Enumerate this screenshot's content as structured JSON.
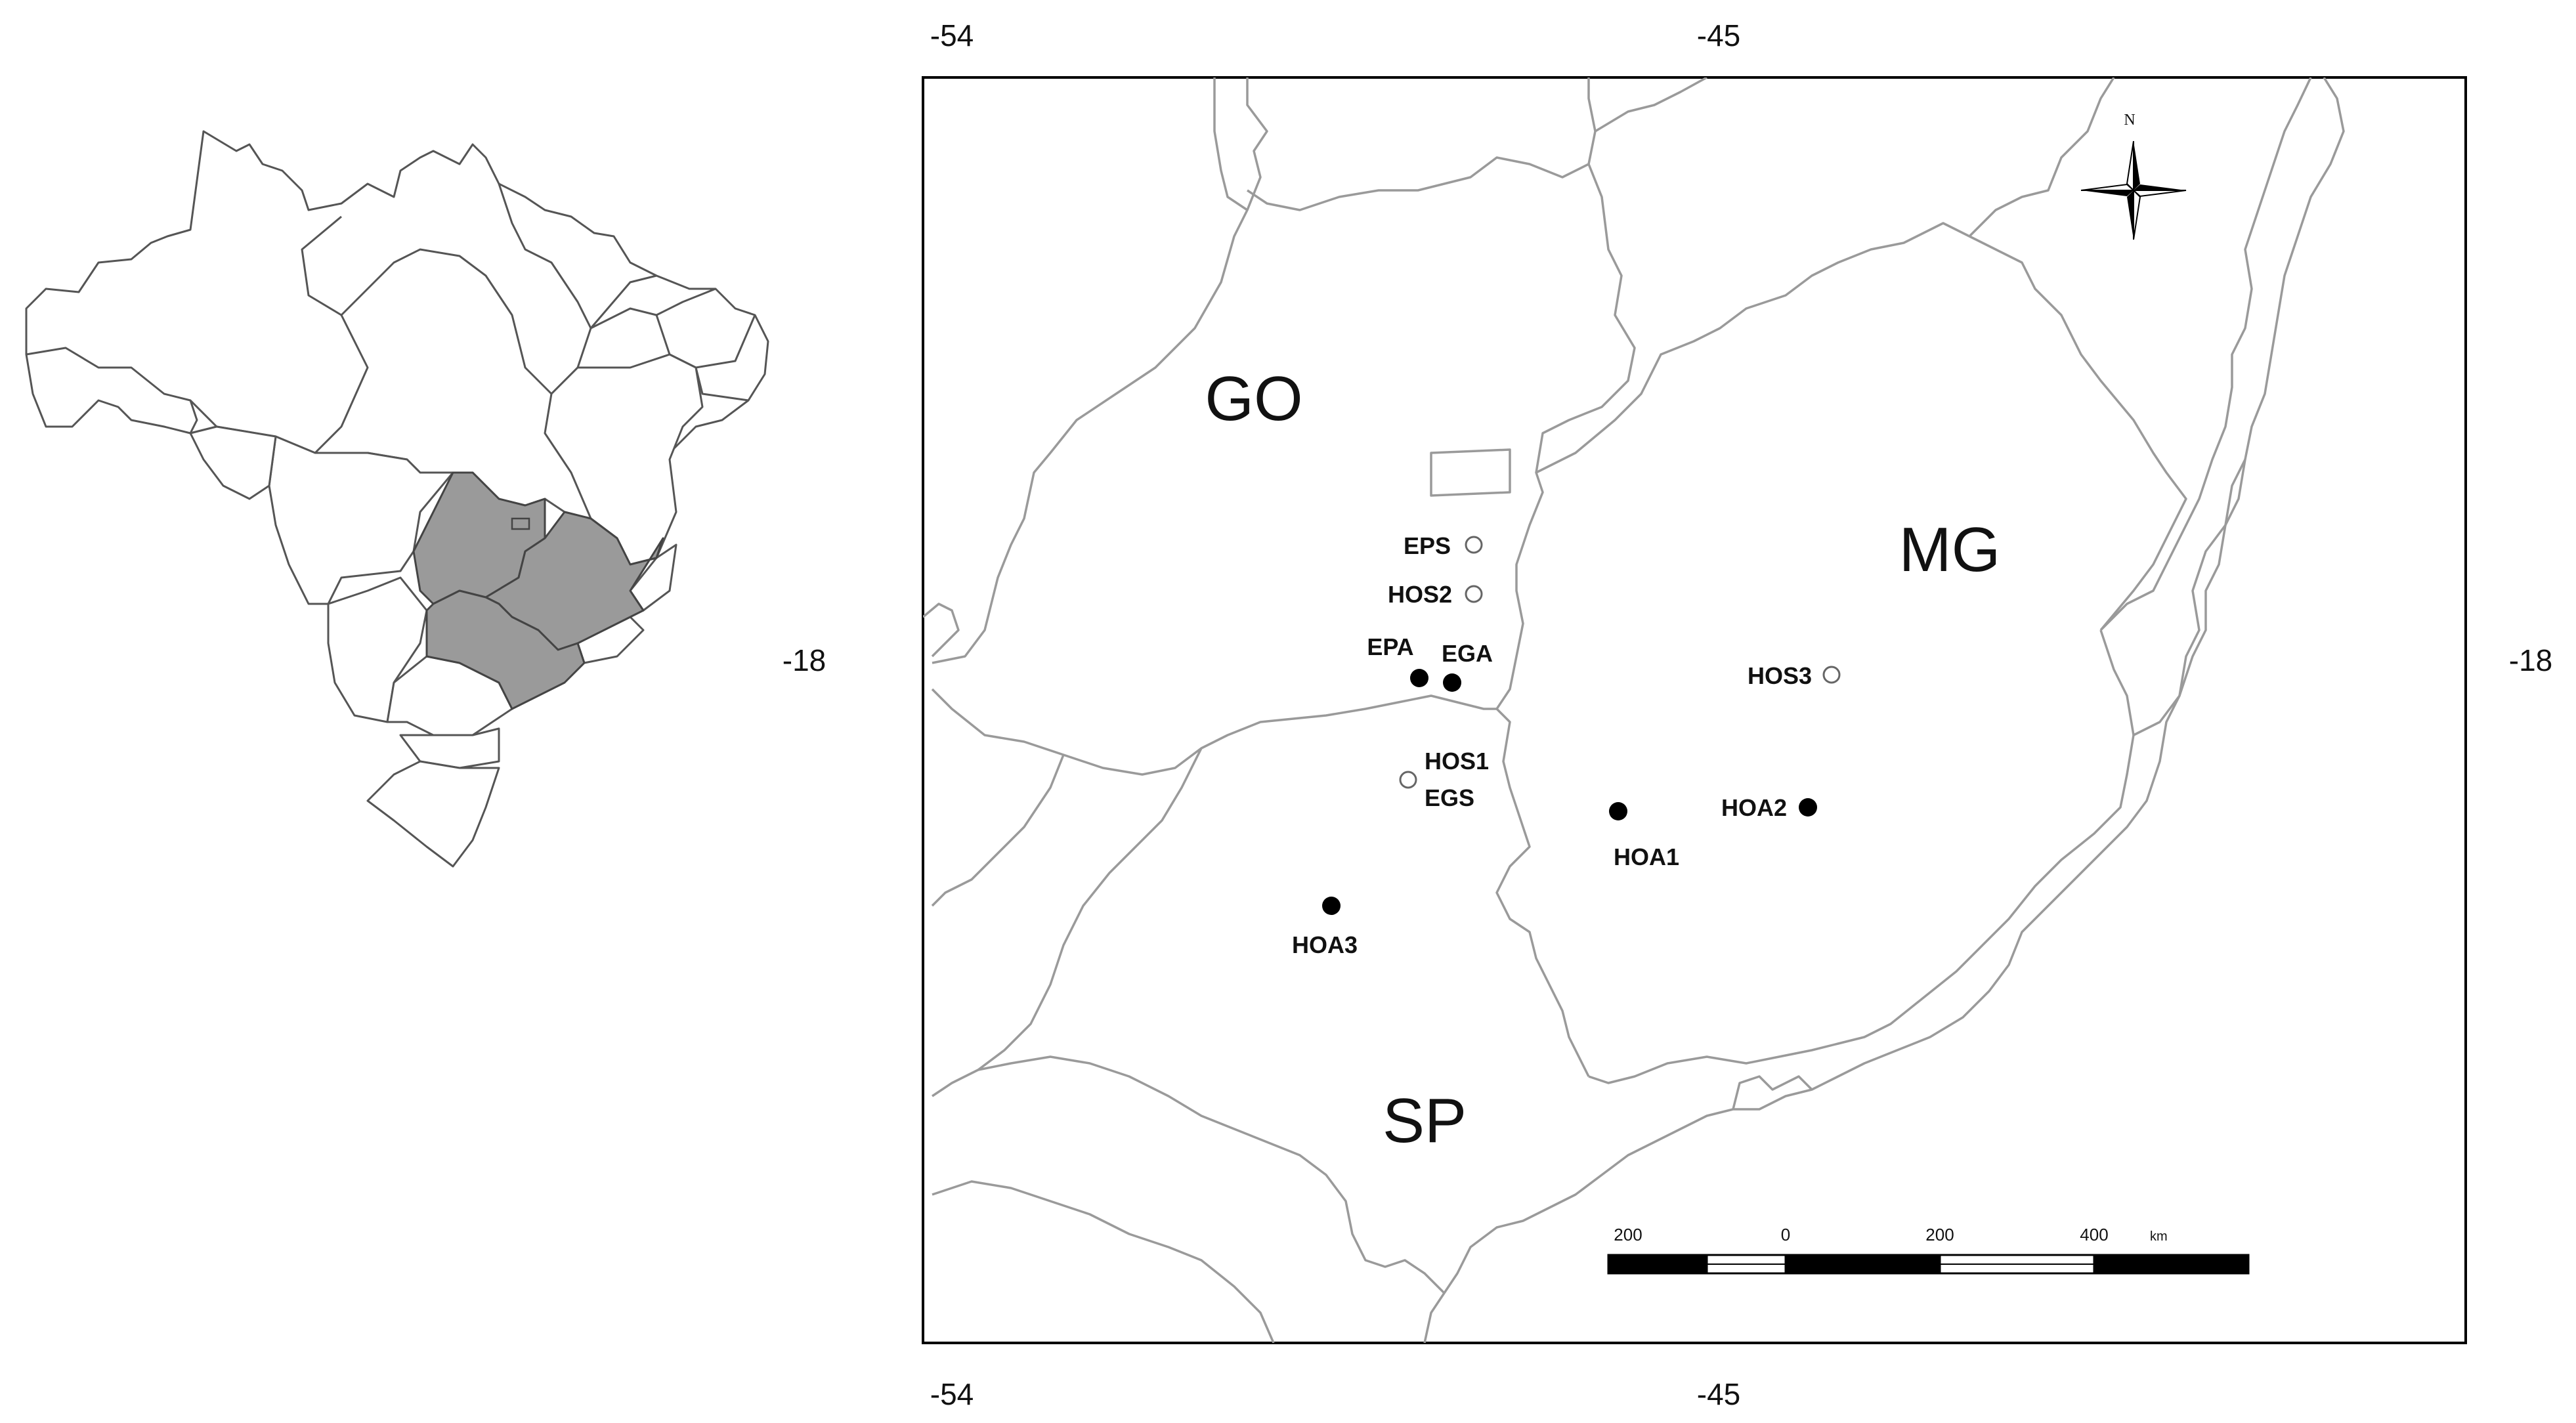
{
  "map": {
    "coords": {
      "top": [
        "-54",
        "-45"
      ],
      "bottom": [
        "-54",
        "-45"
      ],
      "left": "-18",
      "right": "-18"
    },
    "states": [
      "GO",
      "MG",
      "SP"
    ],
    "sites": [
      {
        "label": "EPS",
        "marker": "open"
      },
      {
        "label": "HOS2",
        "marker": "open"
      },
      {
        "label": "EPA",
        "marker": "filled"
      },
      {
        "label": "EGA",
        "marker": "filled"
      },
      {
        "label": "HOS3",
        "marker": "open"
      },
      {
        "label": "HOS1",
        "marker": "open"
      },
      {
        "label": "EGS",
        "marker": "open"
      },
      {
        "label": "HOA1",
        "marker": "filled"
      },
      {
        "label": "HOA2",
        "marker": "filled"
      },
      {
        "label": "HOA3",
        "marker": "filled"
      }
    ],
    "scale_bar": {
      "ticks": [
        "200",
        "0",
        "200",
        "400"
      ],
      "unit": "km"
    },
    "north_arrow": {
      "label": "N",
      "icon": "compass-rose-icon"
    },
    "colors": {
      "borders": "#9a9a9a",
      "highlight": "#9a9a9a",
      "filled_marker": "#000000",
      "frame": "#000000"
    }
  },
  "inset": {
    "name": "brazil-overview",
    "highlighted_states": 3
  }
}
